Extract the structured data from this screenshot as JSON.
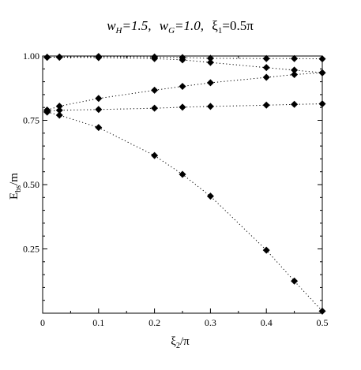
{
  "chart_data": {
    "type": "scatter",
    "title": {
      "w_h_label": "w",
      "w_h_sub": "H",
      "w_h_value": "=1.5,",
      "w_g_label": "w",
      "w_g_sub": "G",
      "w_g_value": "=1.0,",
      "xi_label": "ξ",
      "xi_sub": "1",
      "xi_value": "=0.5π"
    },
    "xlabel": {
      "main": "ξ",
      "sub": "2",
      "suffix": "/π"
    },
    "ylabel": {
      "main": "E",
      "sub": "bs",
      "suffix": "/m"
    },
    "xlim": [
      0,
      0.5
    ],
    "ylim": [
      0.0,
      1.0
    ],
    "x_ticks": [
      "0",
      "0.1",
      "0.2",
      "0.3",
      "0.4",
      "0.5"
    ],
    "x_tick_values": [
      0,
      0.1,
      0.2,
      0.3,
      0.4,
      0.5
    ],
    "y_ticks": [
      "0.25",
      "0.50",
      "0.75",
      "1.00"
    ],
    "y_tick_values": [
      0.25,
      0.5,
      0.75,
      1.0
    ],
    "line_style": "dotted",
    "marker": "diamond",
    "grid": false,
    "series": [
      {
        "points": [
          [
            0.008,
            0.995
          ],
          [
            0.03,
            0.996
          ],
          [
            0.1,
            0.998
          ],
          [
            0.2,
            0.996
          ],
          [
            0.25,
            0.994
          ],
          [
            0.3,
            0.991
          ],
          [
            0.4,
            0.99
          ],
          [
            0.45,
            0.99
          ],
          [
            0.5,
            0.989
          ]
        ]
      },
      {
        "points": [
          [
            0.008,
            0.995
          ],
          [
            0.03,
            0.995
          ],
          [
            0.1,
            0.994
          ],
          [
            0.2,
            0.99
          ],
          [
            0.25,
            0.985
          ],
          [
            0.3,
            0.975
          ],
          [
            0.4,
            0.955
          ],
          [
            0.45,
            0.945
          ],
          [
            0.5,
            0.935
          ]
        ]
      },
      {
        "points": [
          [
            0.008,
            0.79
          ],
          [
            0.03,
            0.805
          ],
          [
            0.1,
            0.835
          ],
          [
            0.2,
            0.867
          ],
          [
            0.25,
            0.882
          ],
          [
            0.3,
            0.896
          ],
          [
            0.4,
            0.917
          ],
          [
            0.45,
            0.928
          ],
          [
            0.5,
            0.935
          ]
        ]
      },
      {
        "points": [
          [
            0.008,
            0.785
          ],
          [
            0.03,
            0.789
          ],
          [
            0.1,
            0.792
          ],
          [
            0.2,
            0.797
          ],
          [
            0.25,
            0.801
          ],
          [
            0.3,
            0.804
          ],
          [
            0.4,
            0.809
          ],
          [
            0.45,
            0.812
          ],
          [
            0.5,
            0.814
          ]
        ]
      },
      {
        "points": [
          [
            0.008,
            0.782
          ],
          [
            0.03,
            0.77
          ],
          [
            0.1,
            0.722
          ],
          [
            0.2,
            0.613
          ],
          [
            0.25,
            0.54
          ],
          [
            0.3,
            0.455
          ],
          [
            0.4,
            0.245
          ],
          [
            0.45,
            0.125
          ],
          [
            0.5,
            0.008
          ]
        ]
      }
    ]
  }
}
